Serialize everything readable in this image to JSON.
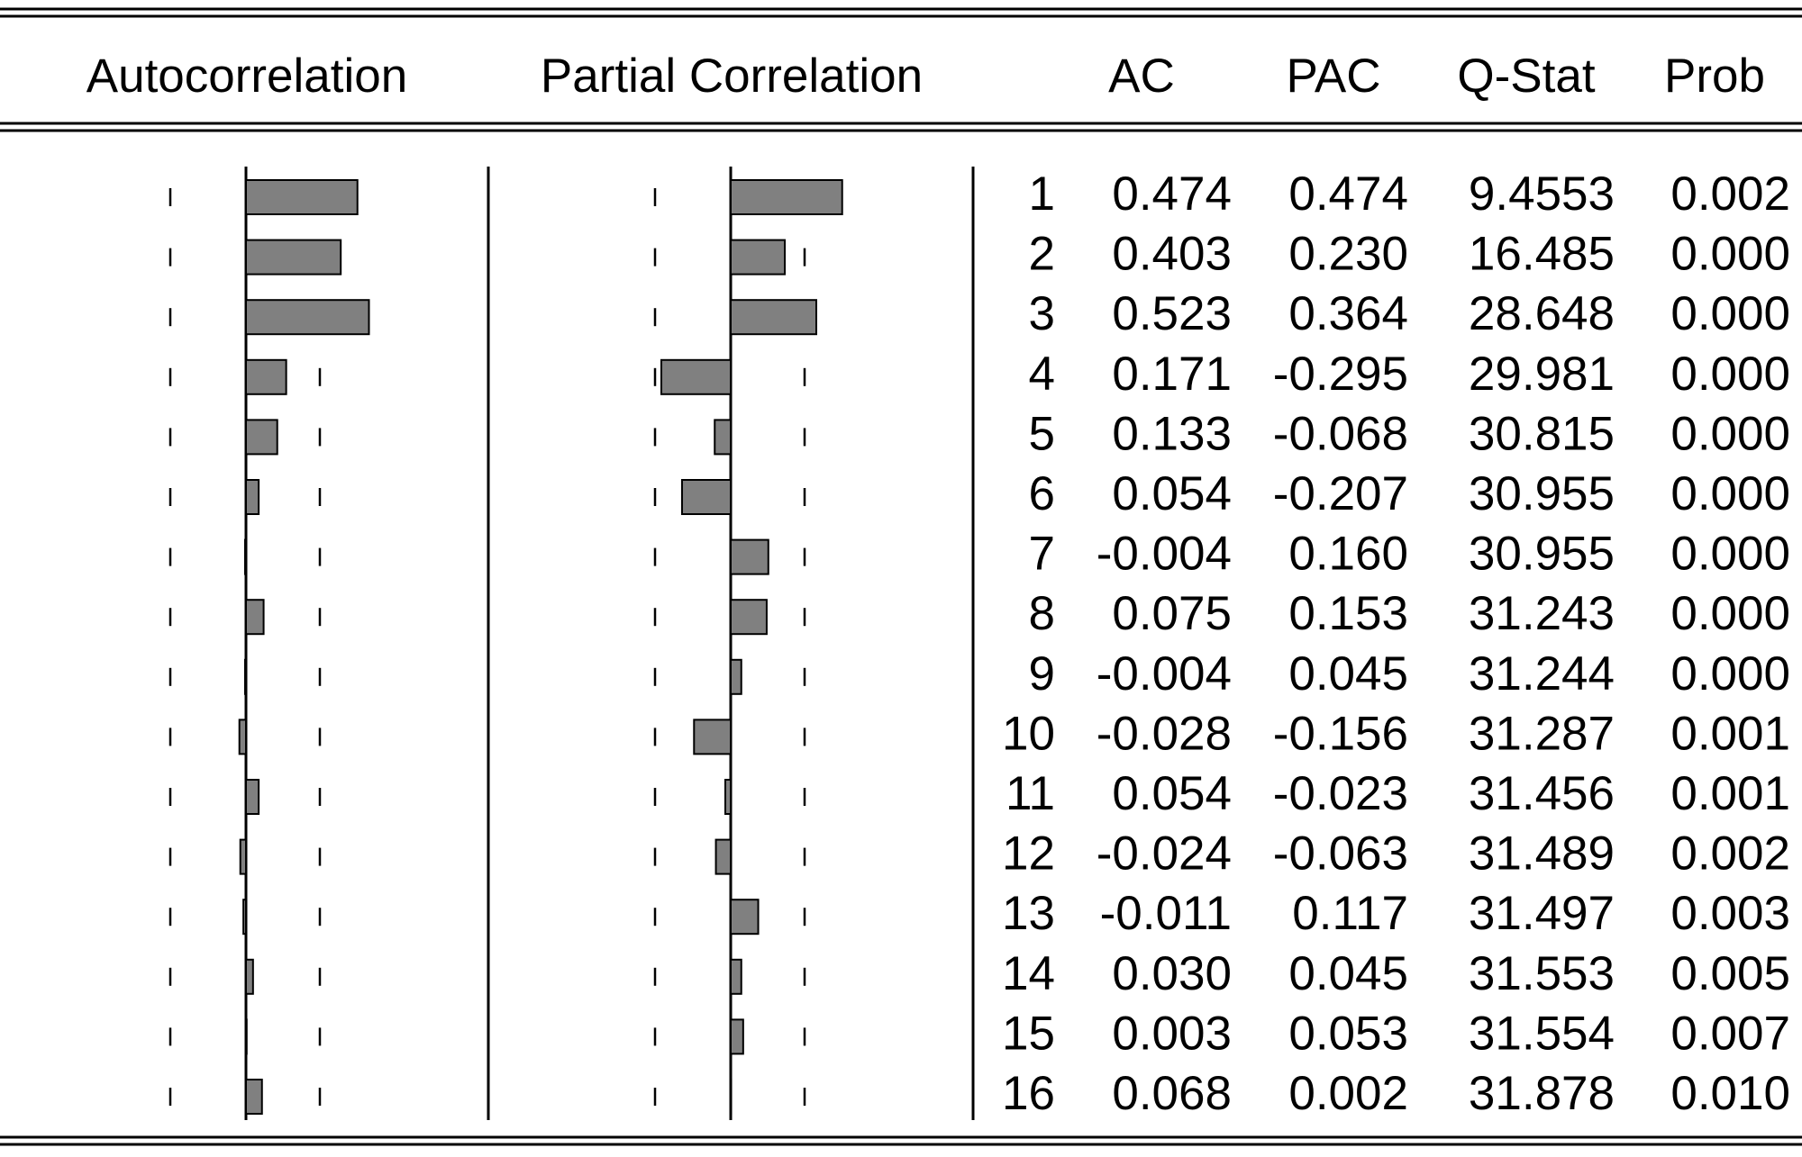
{
  "header": [
    "Autocorrelation",
    "Partial Correlation",
    "AC",
    "PAC",
    "Q-Stat",
    "Prob"
  ],
  "rows": [
    {
      "lag": 1,
      "ac": "0.474",
      "pac": "0.474",
      "q": "9.4553",
      "prob": "0.002"
    },
    {
      "lag": 2,
      "ac": "0.403",
      "pac": "0.230",
      "q": "16.485",
      "prob": "0.000"
    },
    {
      "lag": 3,
      "ac": "0.523",
      "pac": "0.364",
      "q": "28.648",
      "prob": "0.000"
    },
    {
      "lag": 4,
      "ac": "0.171",
      "pac": "-0.295",
      "q": "29.981",
      "prob": "0.000"
    },
    {
      "lag": 5,
      "ac": "0.133",
      "pac": "-0.068",
      "q": "30.815",
      "prob": "0.000"
    },
    {
      "lag": 6,
      "ac": "0.054",
      "pac": "-0.207",
      "q": "30.955",
      "prob": "0.000"
    },
    {
      "lag": 7,
      "ac": "-0.004",
      "pac": "0.160",
      "q": "30.955",
      "prob": "0.000"
    },
    {
      "lag": 8,
      "ac": "0.075",
      "pac": "0.153",
      "q": "31.243",
      "prob": "0.000"
    },
    {
      "lag": 9,
      "ac": "-0.004",
      "pac": "0.045",
      "q": "31.244",
      "prob": "0.000"
    },
    {
      "lag": 10,
      "ac": "-0.028",
      "pac": "-0.156",
      "q": "31.287",
      "prob": "0.001"
    },
    {
      "lag": 11,
      "ac": "0.054",
      "pac": "-0.023",
      "q": "31.456",
      "prob": "0.001"
    },
    {
      "lag": 12,
      "ac": "-0.024",
      "pac": "-0.063",
      "q": "31.489",
      "prob": "0.002"
    },
    {
      "lag": 13,
      "ac": "-0.011",
      "pac": "0.117",
      "q": "31.497",
      "prob": "0.003"
    },
    {
      "lag": 14,
      "ac": "0.030",
      "pac": "0.045",
      "q": "31.553",
      "prob": "0.005"
    },
    {
      "lag": 15,
      "ac": "0.003",
      "pac": "0.053",
      "q": "31.554",
      "prob": "0.007"
    },
    {
      "lag": 16,
      "ac": "0.068",
      "pac": "0.002",
      "q": "31.878",
      "prob": "0.010"
    }
  ]
}
